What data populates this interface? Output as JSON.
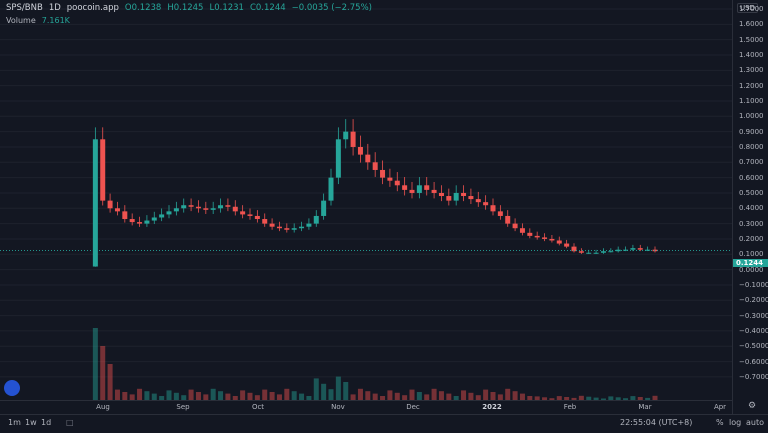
{
  "symbol": "SPS/BNB",
  "interval": "1D",
  "source": "poocoin.app",
  "ohlc": {
    "open": "O0.1238",
    "high": "H0.1245",
    "low": "L0.1231",
    "close": "C0.1244",
    "change": "−0.0035 (−2.75%)"
  },
  "volume": {
    "label": "Volume",
    "value": "7.161K"
  },
  "currency": "USD",
  "last_price": "0.1244",
  "price_ticks": [
    "1.7000",
    "1.6000",
    "1.5000",
    "1.4000",
    "1.3000",
    "1.2000",
    "1.1000",
    "1.0000",
    "0.9000",
    "0.8000",
    "0.7000",
    "0.6000",
    "0.5000",
    "0.4000",
    "0.3000",
    "0.2000",
    "0.1000",
    "0.0000",
    "−0.1000",
    "−0.2000",
    "−0.3000",
    "−0.4000",
    "−0.5000",
    "−0.6000",
    "−0.7000"
  ],
  "time_ticks": [
    "Aug",
    "Sep",
    "Oct",
    "Nov",
    "Dec",
    "2022",
    "Feb",
    "Mar",
    "Apr"
  ],
  "bottom_bar": {
    "intervals": [
      "1m",
      "1w",
      "1d"
    ],
    "clock": "22:55:04 (UTC+8)",
    "percent": "%",
    "log": "log",
    "auto": "auto"
  },
  "colors": {
    "up": "#26a69a",
    "down": "#ef5350",
    "background": "#131722"
  },
  "chart_data": {
    "type": "candlestick",
    "ylim": [
      -0.75,
      1.78
    ],
    "close": [
      0.02,
      0.85,
      0.45,
      0.4,
      0.38,
      0.33,
      0.31,
      0.3,
      0.32,
      0.34,
      0.36,
      0.38,
      0.4,
      0.42,
      0.41,
      0.4,
      0.39,
      0.4,
      0.42,
      0.41,
      0.38,
      0.36,
      0.35,
      0.33,
      0.3,
      0.28,
      0.27,
      0.26,
      0.27,
      0.28,
      0.3,
      0.35,
      0.45,
      0.6,
      0.85,
      0.9,
      0.8,
      0.75,
      0.7,
      0.65,
      0.6,
      0.58,
      0.55,
      0.52,
      0.5,
      0.55,
      0.52,
      0.5,
      0.48,
      0.45,
      0.5,
      0.48,
      0.46,
      0.44,
      0.42,
      0.38,
      0.35,
      0.3,
      0.27,
      0.24,
      0.22,
      0.21,
      0.2,
      0.19,
      0.17,
      0.15,
      0.12,
      0.11,
      0.11,
      0.11,
      0.12,
      0.12,
      0.13,
      0.13,
      0.14,
      0.13,
      0.13,
      0.12
    ],
    "volume_series": "Volume"
  }
}
